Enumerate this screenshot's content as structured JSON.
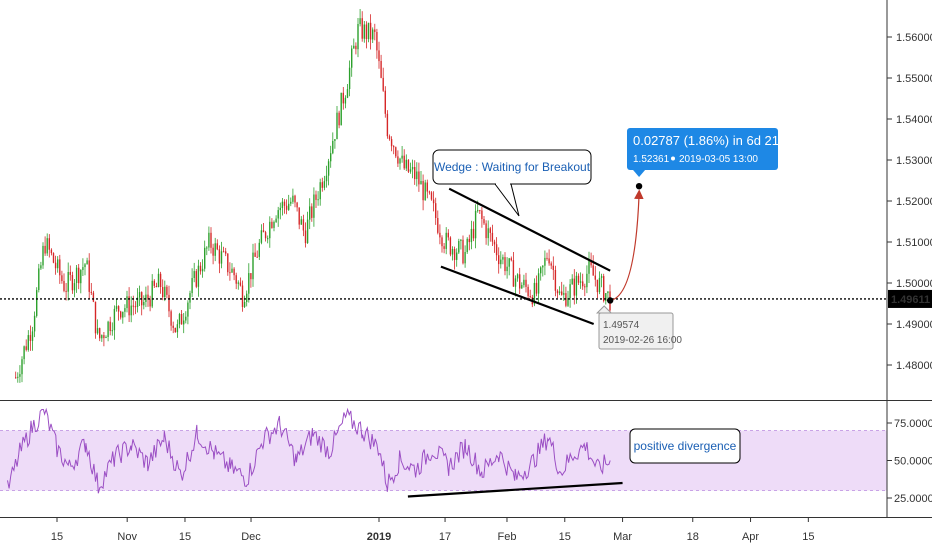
{
  "chart_data": [
    {
      "type": "candlestick",
      "title": "",
      "xlabel": "",
      "ylabel": "",
      "ylim": [
        1.473,
        1.565
      ],
      "x_ticks": [
        {
          "label": "15",
          "date": "2018-10-15"
        },
        {
          "label": "Nov",
          "date": "2018-11-01"
        },
        {
          "label": "15",
          "date": "2018-11-15"
        },
        {
          "label": "Dec",
          "date": "2018-12-01"
        },
        {
          "label": "2019",
          "date": "2019-01-01"
        },
        {
          "label": "17",
          "date": "2019-01-17"
        },
        {
          "label": "Feb",
          "date": "2019-02-01"
        },
        {
          "label": "15",
          "date": "2019-02-15"
        },
        {
          "label": "Mar",
          "date": "2019-03-01"
        },
        {
          "label": "18",
          "date": "2019-03-18"
        },
        {
          "label": "Apr",
          "date": "2019-04-01"
        },
        {
          "label": "15",
          "date": "2019-04-15"
        }
      ],
      "y_ticks": [
        "1.48000",
        "1.49000",
        "1.50000",
        "1.51000",
        "1.52000",
        "1.53000",
        "1.54000",
        "1.55000",
        "1.56000"
      ],
      "price_path": [
        {
          "date": "2018-10-05",
          "close": 1.477
        },
        {
          "date": "2018-10-09",
          "close": 1.49
        },
        {
          "date": "2018-10-12",
          "close": 1.51
        },
        {
          "date": "2018-10-17",
          "close": 1.499
        },
        {
          "date": "2018-10-22",
          "close": 1.505
        },
        {
          "date": "2018-10-25",
          "close": 1.486
        },
        {
          "date": "2018-10-30",
          "close": 1.494
        },
        {
          "date": "2018-11-05",
          "close": 1.495
        },
        {
          "date": "2018-11-09",
          "close": 1.5
        },
        {
          "date": "2018-11-13",
          "close": 1.488
        },
        {
          "date": "2018-11-16",
          "close": 1.497
        },
        {
          "date": "2018-11-21",
          "close": 1.51
        },
        {
          "date": "2018-11-27",
          "close": 1.502
        },
        {
          "date": "2018-11-29",
          "close": 1.497
        },
        {
          "date": "2018-12-03",
          "close": 1.509
        },
        {
          "date": "2018-12-07",
          "close": 1.518
        },
        {
          "date": "2018-12-11",
          "close": 1.52
        },
        {
          "date": "2018-12-14",
          "close": 1.512
        },
        {
          "date": "2018-12-19",
          "close": 1.528
        },
        {
          "date": "2018-12-24",
          "close": 1.548
        },
        {
          "date": "2018-12-27",
          "close": 1.562
        },
        {
          "date": "2018-12-31",
          "close": 1.56
        },
        {
          "date": "2019-01-03",
          "close": 1.538
        },
        {
          "date": "2019-01-07",
          "close": 1.528
        },
        {
          "date": "2019-01-10",
          "close": 1.526
        },
        {
          "date": "2019-01-14",
          "close": 1.518
        },
        {
          "date": "2019-01-17",
          "close": 1.51
        },
        {
          "date": "2019-01-22",
          "close": 1.507
        },
        {
          "date": "2019-01-25",
          "close": 1.517
        },
        {
          "date": "2019-01-30",
          "close": 1.507
        },
        {
          "date": "2019-02-04",
          "close": 1.5
        },
        {
          "date": "2019-02-08",
          "close": 1.497
        },
        {
          "date": "2019-02-11",
          "close": 1.508
        },
        {
          "date": "2019-02-14",
          "close": 1.496
        },
        {
          "date": "2019-02-18",
          "close": 1.5
        },
        {
          "date": "2019-02-21",
          "close": 1.503
        },
        {
          "date": "2019-02-26",
          "close": 1.496
        }
      ],
      "current_price": {
        "label": "1.49611",
        "value": 1.49611
      },
      "wedge": {
        "upper": [
          {
            "date": "2019-01-18",
            "value": 1.523
          },
          {
            "date": "2019-02-26",
            "value": 1.503
          }
        ],
        "lower": [
          {
            "date": "2019-01-16",
            "value": 1.504
          },
          {
            "date": "2019-02-22",
            "value": 1.49
          }
        ]
      },
      "projection": {
        "start": {
          "date": "2019-02-26",
          "value": 1.49574
        },
        "end": {
          "date": "2019-03-05",
          "value": 1.52361
        }
      },
      "annotations": {
        "wedge_label": "Wedge : Waiting for Breakout",
        "measure_title": "0.02787 (1.86%) in 6d 21h",
        "measure_sub": "1.52361",
        "measure_time": "2019-03-05  13:00",
        "point_price": "1.49574",
        "point_time": "2019-02-26 16:00"
      }
    },
    {
      "type": "line",
      "title": "",
      "ylim": [
        20,
        85
      ],
      "band": [
        30,
        70
      ],
      "y_ticks": [
        "25.0000",
        "50.0000",
        "75.0000"
      ],
      "series": [
        {
          "values": [
            {
              "date": "2018-10-03",
              "v": 30
            },
            {
              "date": "2018-10-06",
              "v": 55
            },
            {
              "date": "2018-10-09",
              "v": 72
            },
            {
              "date": "2018-10-12",
              "v": 83
            },
            {
              "date": "2018-10-15",
              "v": 58
            },
            {
              "date": "2018-10-18",
              "v": 45
            },
            {
              "date": "2018-10-22",
              "v": 62
            },
            {
              "date": "2018-10-25",
              "v": 33
            },
            {
              "date": "2018-10-29",
              "v": 52
            },
            {
              "date": "2018-11-02",
              "v": 60
            },
            {
              "date": "2018-11-06",
              "v": 48
            },
            {
              "date": "2018-11-10",
              "v": 65
            },
            {
              "date": "2018-11-14",
              "v": 40
            },
            {
              "date": "2018-11-18",
              "v": 68
            },
            {
              "date": "2018-11-22",
              "v": 55
            },
            {
              "date": "2018-11-26",
              "v": 45
            },
            {
              "date": "2018-11-30",
              "v": 38
            },
            {
              "date": "2018-12-04",
              "v": 64
            },
            {
              "date": "2018-12-08",
              "v": 74
            },
            {
              "date": "2018-12-12",
              "v": 50
            },
            {
              "date": "2018-12-16",
              "v": 68
            },
            {
              "date": "2018-12-20",
              "v": 56
            },
            {
              "date": "2018-12-24",
              "v": 79
            },
            {
              "date": "2018-12-28",
              "v": 70
            },
            {
              "date": "2019-01-01",
              "v": 58
            },
            {
              "date": "2019-01-03",
              "v": 34
            },
            {
              "date": "2019-01-06",
              "v": 50
            },
            {
              "date": "2019-01-10",
              "v": 44
            },
            {
              "date": "2019-01-14",
              "v": 58
            },
            {
              "date": "2019-01-18",
              "v": 46
            },
            {
              "date": "2019-01-22",
              "v": 60
            },
            {
              "date": "2019-01-26",
              "v": 42
            },
            {
              "date": "2019-01-30",
              "v": 55
            },
            {
              "date": "2019-02-03",
              "v": 38
            },
            {
              "date": "2019-02-07",
              "v": 48
            },
            {
              "date": "2019-02-11",
              "v": 66
            },
            {
              "date": "2019-02-14",
              "v": 42
            },
            {
              "date": "2019-02-17",
              "v": 54
            },
            {
              "date": "2019-02-20",
              "v": 60
            },
            {
              "date": "2019-02-23",
              "v": 44
            },
            {
              "date": "2019-02-26",
              "v": 50
            }
          ]
        }
      ],
      "divergence_line": [
        {
          "date": "2019-01-08",
          "v": 26
        },
        {
          "date": "2019-03-01",
          "v": 35
        }
      ],
      "annotations": {
        "divergence_label": "positive divergence"
      }
    }
  ],
  "colors": {
    "candle_up": "#2ca02c",
    "candle_down": "#d62728",
    "rsi_line": "#9b4fc4",
    "rsi_band": "#eedcf8",
    "callout_blue": "#1e88e5",
    "callout_text": "#1a5fb4",
    "projection": "#c0392b"
  }
}
